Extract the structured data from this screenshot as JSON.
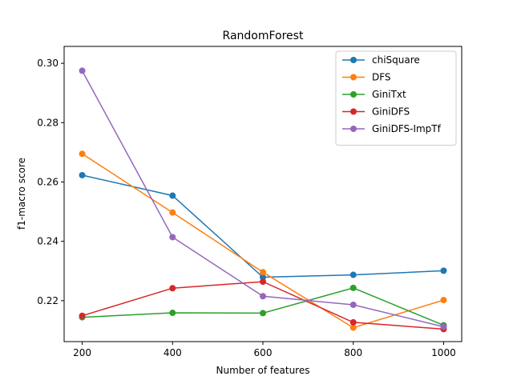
{
  "chart_data": {
    "type": "line",
    "title": "RandomForest",
    "xlabel": "Number of features",
    "ylabel": "f1-macro score",
    "x": [
      200,
      400,
      600,
      800,
      1000
    ],
    "xticks": [
      200,
      400,
      600,
      800,
      1000
    ],
    "yticks": [
      0.22,
      0.24,
      0.26,
      0.28,
      0.3
    ],
    "xlim": [
      160,
      1040
    ],
    "ylim": [
      0.2062,
      0.3057
    ],
    "grid": false,
    "legend_position": "top-right",
    "series": [
      {
        "name": "chiSquare",
        "color": "#1f77b4",
        "values": [
          0.2623,
          0.2554,
          0.2279,
          0.2287,
          0.2301
        ]
      },
      {
        "name": "DFS",
        "color": "#ff7f0e",
        "values": [
          0.2695,
          0.2497,
          0.2296,
          0.2109,
          0.2202
        ]
      },
      {
        "name": "GiniTxt",
        "color": "#2ca02c",
        "values": [
          0.2144,
          0.2159,
          0.2158,
          0.2243,
          0.2117
        ]
      },
      {
        "name": "GiniDFS",
        "color": "#d62728",
        "values": [
          0.2149,
          0.2242,
          0.2264,
          0.2127,
          0.2104
        ]
      },
      {
        "name": "GiniDFS-ImpTf",
        "color": "#9467bd",
        "values": [
          0.2975,
          0.2414,
          0.2215,
          0.2186,
          0.2112
        ]
      }
    ]
  }
}
